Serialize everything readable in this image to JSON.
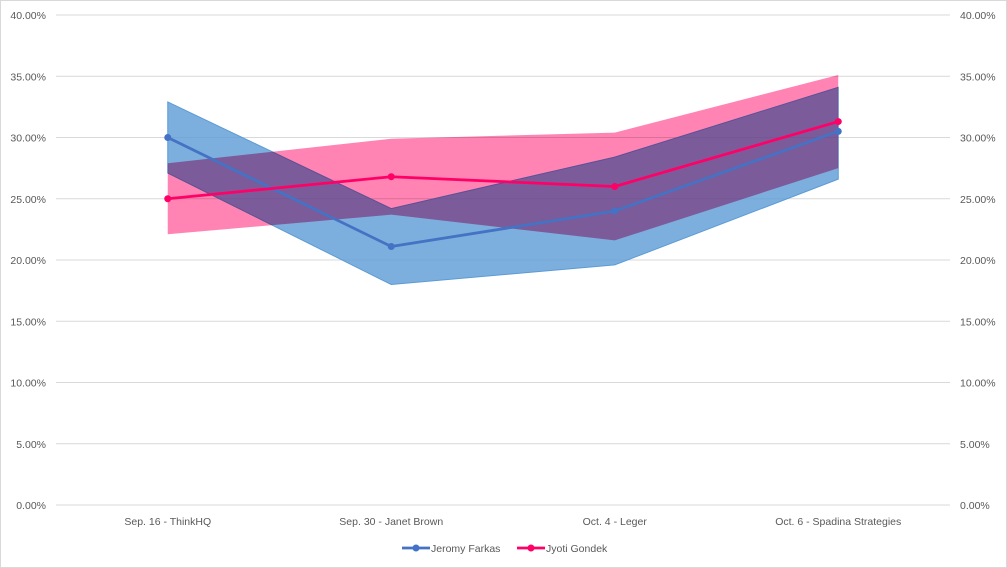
{
  "chart_data": {
    "type": "line",
    "title": "",
    "xlabel": "",
    "ylabel": "",
    "ylim": [
      0,
      0.4
    ],
    "y_ticks": [
      0,
      0.05,
      0.1,
      0.15,
      0.2,
      0.25,
      0.3,
      0.35,
      0.4
    ],
    "y_tick_labels": [
      "0.00%",
      "5.00%",
      "10.00%",
      "15.00%",
      "20.00%",
      "25.00%",
      "30.00%",
      "35.00%",
      "40.00%"
    ],
    "secondary_y_axis_mirrors_primary": true,
    "grid": true,
    "categories": [
      "Sep. 16 - ThinkHQ",
      "Sep. 30 - Janet Brown",
      "Oct. 4 - Leger",
      "Oct. 6 - Spadina Strategies"
    ],
    "legend_position": "bottom",
    "series": [
      {
        "name": "Jeromy Farkas",
        "color": "#4472c4",
        "band_color": "#5b9bd5",
        "values": [
          0.3,
          0.211,
          0.24,
          0.305
        ],
        "band_lower": [
          0.271,
          0.18,
          0.196,
          0.266
        ],
        "band_upper": [
          0.329,
          0.242,
          0.284,
          0.341
        ]
      },
      {
        "name": "Jyoti Gondek",
        "color": "#ff0066",
        "band_color": "#ff6ea6",
        "values": [
          0.25,
          0.268,
          0.26,
          0.313
        ],
        "band_lower": [
          0.221,
          0.237,
          0.216,
          0.275
        ],
        "band_upper": [
          0.279,
          0.299,
          0.304,
          0.351
        ]
      }
    ]
  }
}
